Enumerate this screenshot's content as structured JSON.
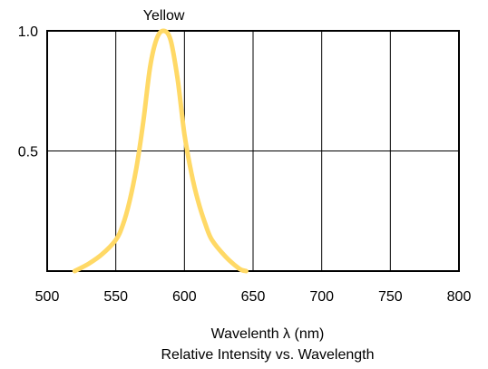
{
  "chart_data": {
    "type": "line",
    "title": "Relative Intensity vs. Wavelength",
    "xlabel": "Wavelenth λ (nm)",
    "ylabel": "",
    "xlim": [
      500,
      800
    ],
    "ylim": [
      0,
      1.0
    ],
    "x_ticks": [
      500,
      550,
      600,
      650,
      700,
      750,
      800
    ],
    "x_tick_labels": [
      "500",
      "550",
      "600",
      "650",
      "700",
      "750",
      "800"
    ],
    "y_ticks": [
      0.5,
      1.0
    ],
    "y_tick_labels": [
      "0.5",
      "1.0"
    ],
    "grid": true,
    "series": [
      {
        "name": "Yellow",
        "color": "#FFD966",
        "x": [
          520,
          530,
          540,
          550,
          555,
          560,
          565,
          570,
          575,
          580,
          585,
          590,
          595,
          600,
          605,
          610,
          615,
          620,
          630,
          640,
          645
        ],
        "y": [
          0.0,
          0.03,
          0.07,
          0.13,
          0.19,
          0.29,
          0.43,
          0.62,
          0.85,
          0.97,
          1.0,
          0.96,
          0.8,
          0.57,
          0.41,
          0.29,
          0.2,
          0.13,
          0.06,
          0.01,
          0.0
        ]
      }
    ]
  }
}
